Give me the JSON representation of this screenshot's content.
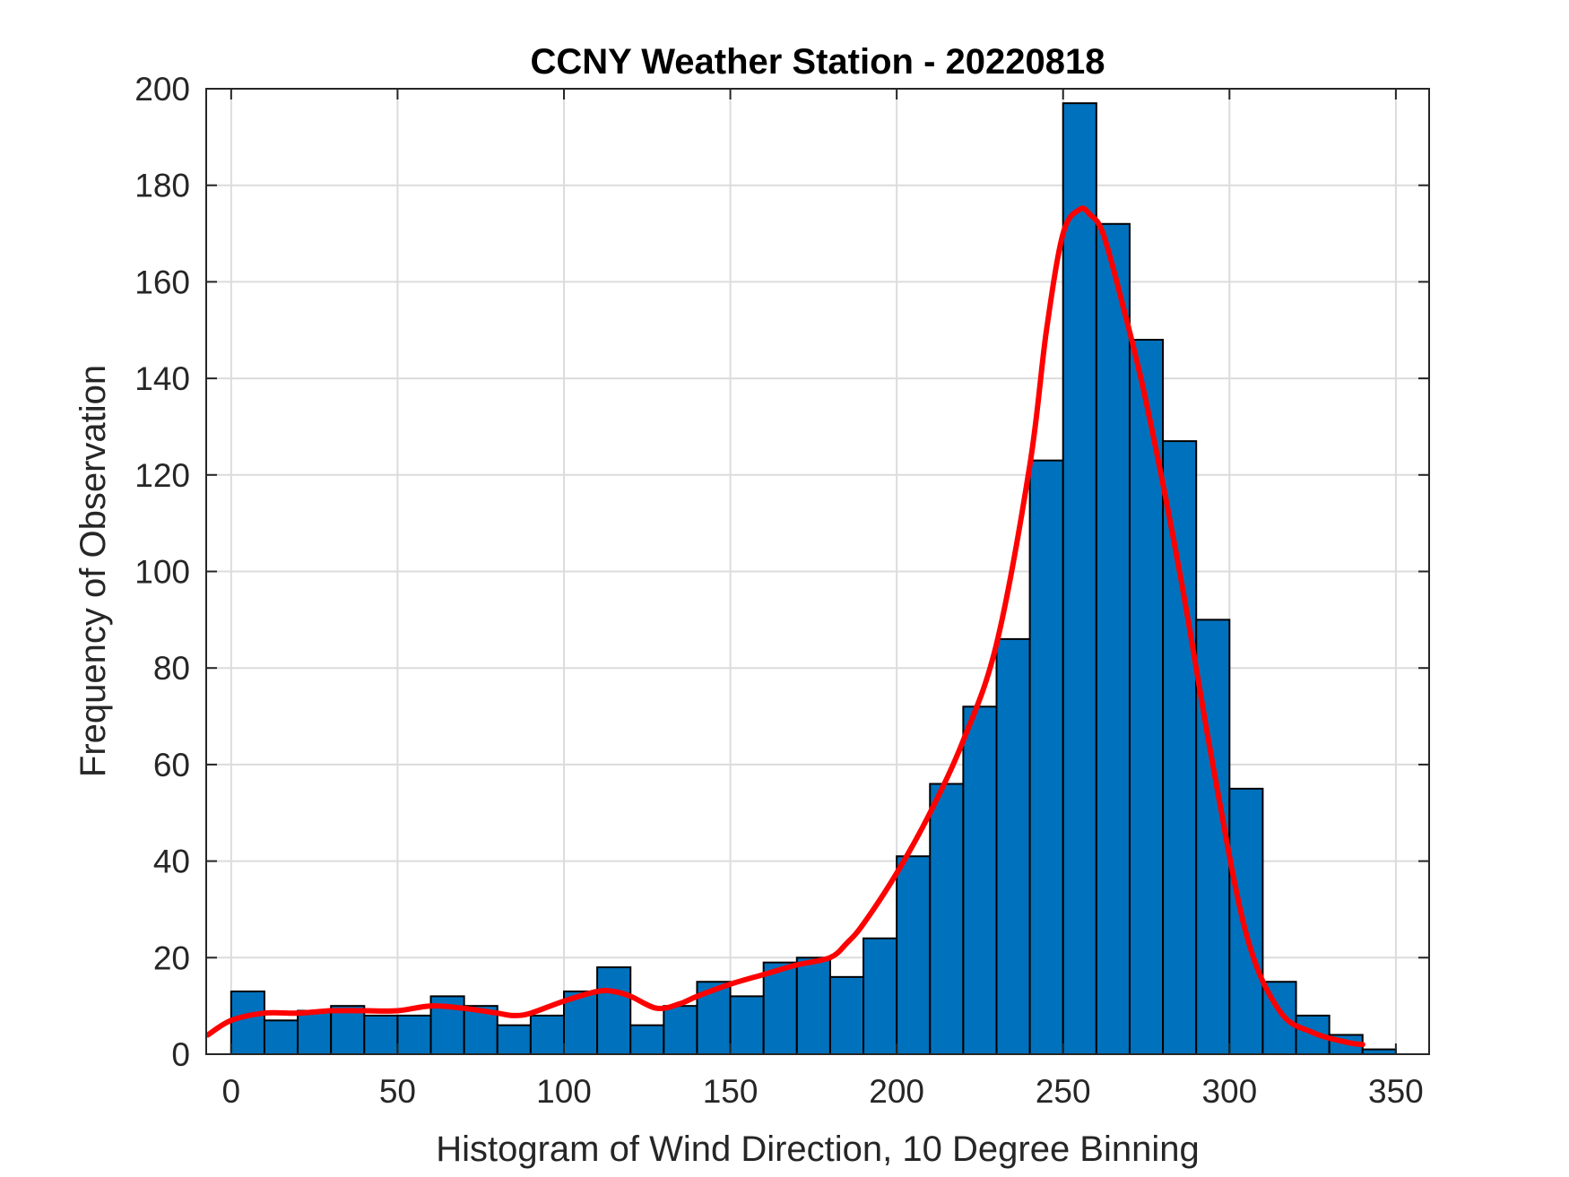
{
  "chart_data": {
    "type": "bar",
    "title": "CCNY Weather Station - 20220818",
    "xlabel": "Histogram of Wind Direction, 10 Degree Binning",
    "ylabel": "Frequency of Observation",
    "xlim": [
      -7.5,
      360
    ],
    "ylim": [
      0,
      200
    ],
    "xticks": [
      0,
      50,
      100,
      150,
      200,
      250,
      300,
      350
    ],
    "yticks": [
      0,
      20,
      40,
      60,
      80,
      100,
      120,
      140,
      160,
      180,
      200
    ],
    "grid": true,
    "bin_width": 10,
    "bin_edges_start": [
      0,
      10,
      20,
      30,
      40,
      50,
      60,
      70,
      80,
      90,
      100,
      110,
      120,
      130,
      140,
      150,
      160,
      170,
      180,
      190,
      200,
      210,
      220,
      230,
      240,
      250,
      260,
      270,
      280,
      290,
      300,
      310,
      320,
      330,
      340
    ],
    "values": [
      13,
      7,
      9,
      10,
      8,
      8,
      12,
      10,
      6,
      8,
      13,
      18,
      6,
      10,
      15,
      12,
      19,
      20,
      16,
      24,
      41,
      56,
      72,
      86,
      123,
      197,
      172,
      148,
      127,
      90,
      55,
      15,
      8,
      4,
      1
    ],
    "fit_curve": {
      "x": [
        -7,
        0,
        10,
        20,
        30,
        40,
        50,
        60,
        70,
        80,
        85,
        90,
        100,
        110,
        115,
        120,
        128,
        135,
        140,
        150,
        160,
        170,
        180,
        185,
        190,
        200,
        210,
        220,
        230,
        240,
        245,
        250,
        255,
        258,
        262,
        268,
        275,
        285,
        295,
        305,
        315,
        325,
        335,
        340
      ],
      "y": [
        4,
        7,
        8.5,
        8.5,
        9,
        9,
        9,
        10,
        9.5,
        8.5,
        8,
        8.5,
        11,
        13,
        13,
        12,
        9.5,
        10.5,
        12,
        14.5,
        16.5,
        18.5,
        20,
        23,
        27,
        37.5,
        50,
        65,
        85,
        122,
        150,
        170,
        175,
        174,
        170,
        155,
        135,
        100,
        60,
        25,
        9,
        4.5,
        2.5,
        2
      ],
      "color": "#FF0000"
    },
    "bar_color": "#0072BD",
    "bar_edge_color": "#000000"
  }
}
